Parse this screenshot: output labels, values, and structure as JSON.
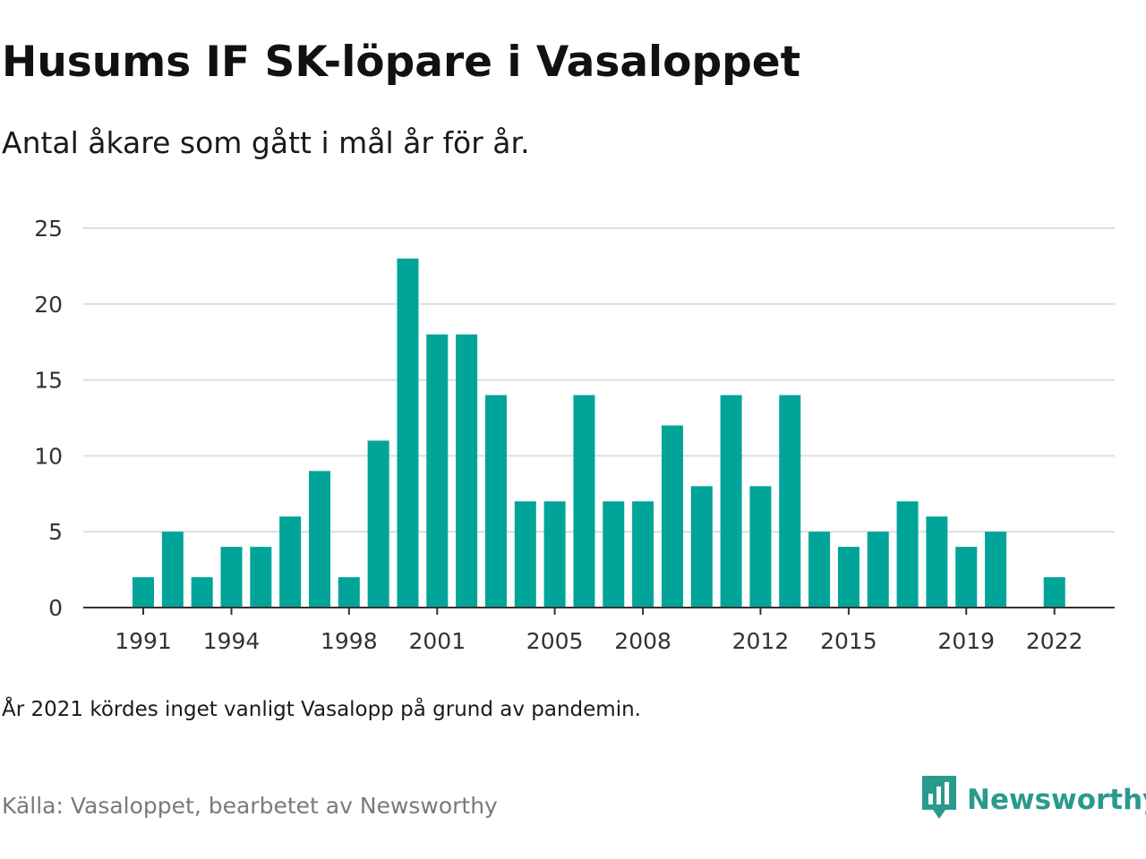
{
  "title": "Husums IF SK-löpare i Vasaloppet",
  "subtitle": "Antal åkare som gått i mål år för år.",
  "note": "År 2021 kördes inget vanligt Vasalopp på grund av pandemin.",
  "source": "Källa: Vasaloppet, bearbetet av Newsworthy",
  "brand": {
    "name": "Newsworthy",
    "icon": "newsworthy-logo-icon"
  },
  "colors": {
    "bar": "#00a499",
    "grid": "#dddddd",
    "axis": "#333333",
    "brand": "#2a9a8c"
  },
  "chart_data": {
    "type": "bar",
    "categories": [
      "1991",
      "1992",
      "1993",
      "1994",
      "1995",
      "1996",
      "1997",
      "1998",
      "1999",
      "2000",
      "2001",
      "2002",
      "2003",
      "2004",
      "2005",
      "2006",
      "2007",
      "2008",
      "2009",
      "2010",
      "2011",
      "2012",
      "2013",
      "2014",
      "2015",
      "2016",
      "2017",
      "2018",
      "2019",
      "2020",
      "2021",
      "2022"
    ],
    "values": [
      2,
      5,
      2,
      4,
      4,
      6,
      9,
      2,
      11,
      23,
      18,
      18,
      14,
      7,
      7,
      14,
      7,
      7,
      12,
      8,
      14,
      8,
      14,
      5,
      4,
      5,
      7,
      6,
      4,
      5,
      null,
      2
    ],
    "x_tick_labels": [
      "1991",
      "1994",
      "1998",
      "2001",
      "2005",
      "2008",
      "2012",
      "2015",
      "2019",
      "2022"
    ],
    "y_ticks": [
      0,
      5,
      10,
      15,
      20,
      25
    ],
    "ylim": [
      0,
      25
    ],
    "grid": true,
    "legend": "none",
    "title": "Husums IF SK-löpare i Vasaloppet",
    "xlabel": "",
    "ylabel": ""
  }
}
